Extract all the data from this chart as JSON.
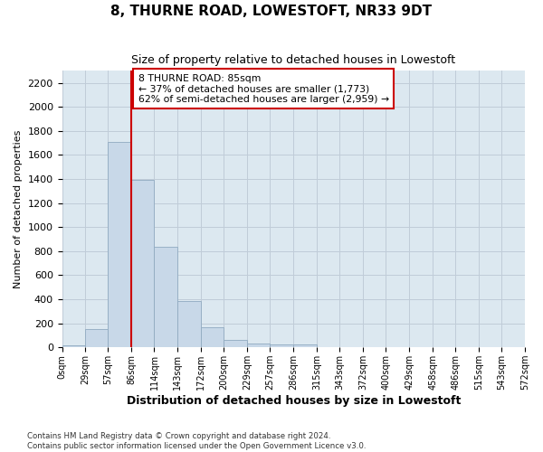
{
  "title": "8, THURNE ROAD, LOWESTOFT, NR33 9DT",
  "subtitle": "Size of property relative to detached houses in Lowestoft",
  "xlabel": "Distribution of detached houses by size in Lowestoft",
  "ylabel": "Number of detached properties",
  "bin_edges": [
    0,
    29,
    57,
    86,
    114,
    143,
    172,
    200,
    229,
    257,
    286,
    315,
    343,
    372,
    400,
    429,
    458,
    486,
    515,
    543,
    572
  ],
  "bar_heights": [
    20,
    155,
    1710,
    1390,
    835,
    385,
    165,
    65,
    35,
    25,
    27,
    0,
    0,
    0,
    0,
    0,
    0,
    0,
    0,
    0
  ],
  "bar_color": "#c8d8e8",
  "bar_edge_color": "#90aac0",
  "grid_color": "#c0ccd8",
  "property_line_x": 86,
  "annotation_text": "8 THURNE ROAD: 85sqm\n← 37% of detached houses are smaller (1,773)\n62% of semi-detached houses are larger (2,959) →",
  "annotation_box_color": "#ffffff",
  "annotation_box_edge_color": "#cc0000",
  "annotation_text_color": "#000000",
  "property_line_color": "#cc0000",
  "footer_line1": "Contains HM Land Registry data © Crown copyright and database right 2024.",
  "footer_line2": "Contains public sector information licensed under the Open Government Licence v3.0.",
  "background_color": "#dce8f0",
  "ylim": [
    0,
    2300
  ],
  "yticks": [
    0,
    200,
    400,
    600,
    800,
    1000,
    1200,
    1400,
    1600,
    1800,
    2000,
    2200
  ]
}
